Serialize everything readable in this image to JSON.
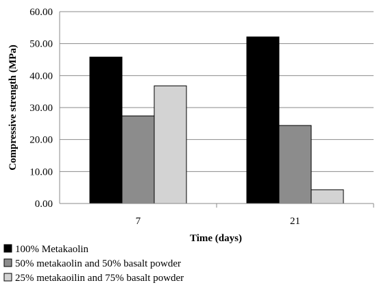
{
  "chart_data": {
    "type": "bar",
    "title": "",
    "xlabel": "Time (days)",
    "ylabel": "Compressive strength (MPa)",
    "categories": [
      "7",
      "21"
    ],
    "ylim": [
      0,
      60
    ],
    "yticks": [
      "0.00",
      "10.00",
      "20.00",
      "30.00",
      "40.00",
      "50.00",
      "60.00"
    ],
    "grid": "horizontal",
    "legend_position": "bottom",
    "series": [
      {
        "name": "100% Metakaolin",
        "values": [
          45.8,
          52.1
        ],
        "color": "#000000"
      },
      {
        "name": "50% metakaolin and 50% basalt powder",
        "values": [
          27.4,
          24.4
        ],
        "color": "#8c8c8c"
      },
      {
        "name": "25% metakaoilin and 75% basalt powder",
        "values": [
          36.8,
          4.3
        ],
        "color": "#d3d3d3"
      }
    ]
  }
}
